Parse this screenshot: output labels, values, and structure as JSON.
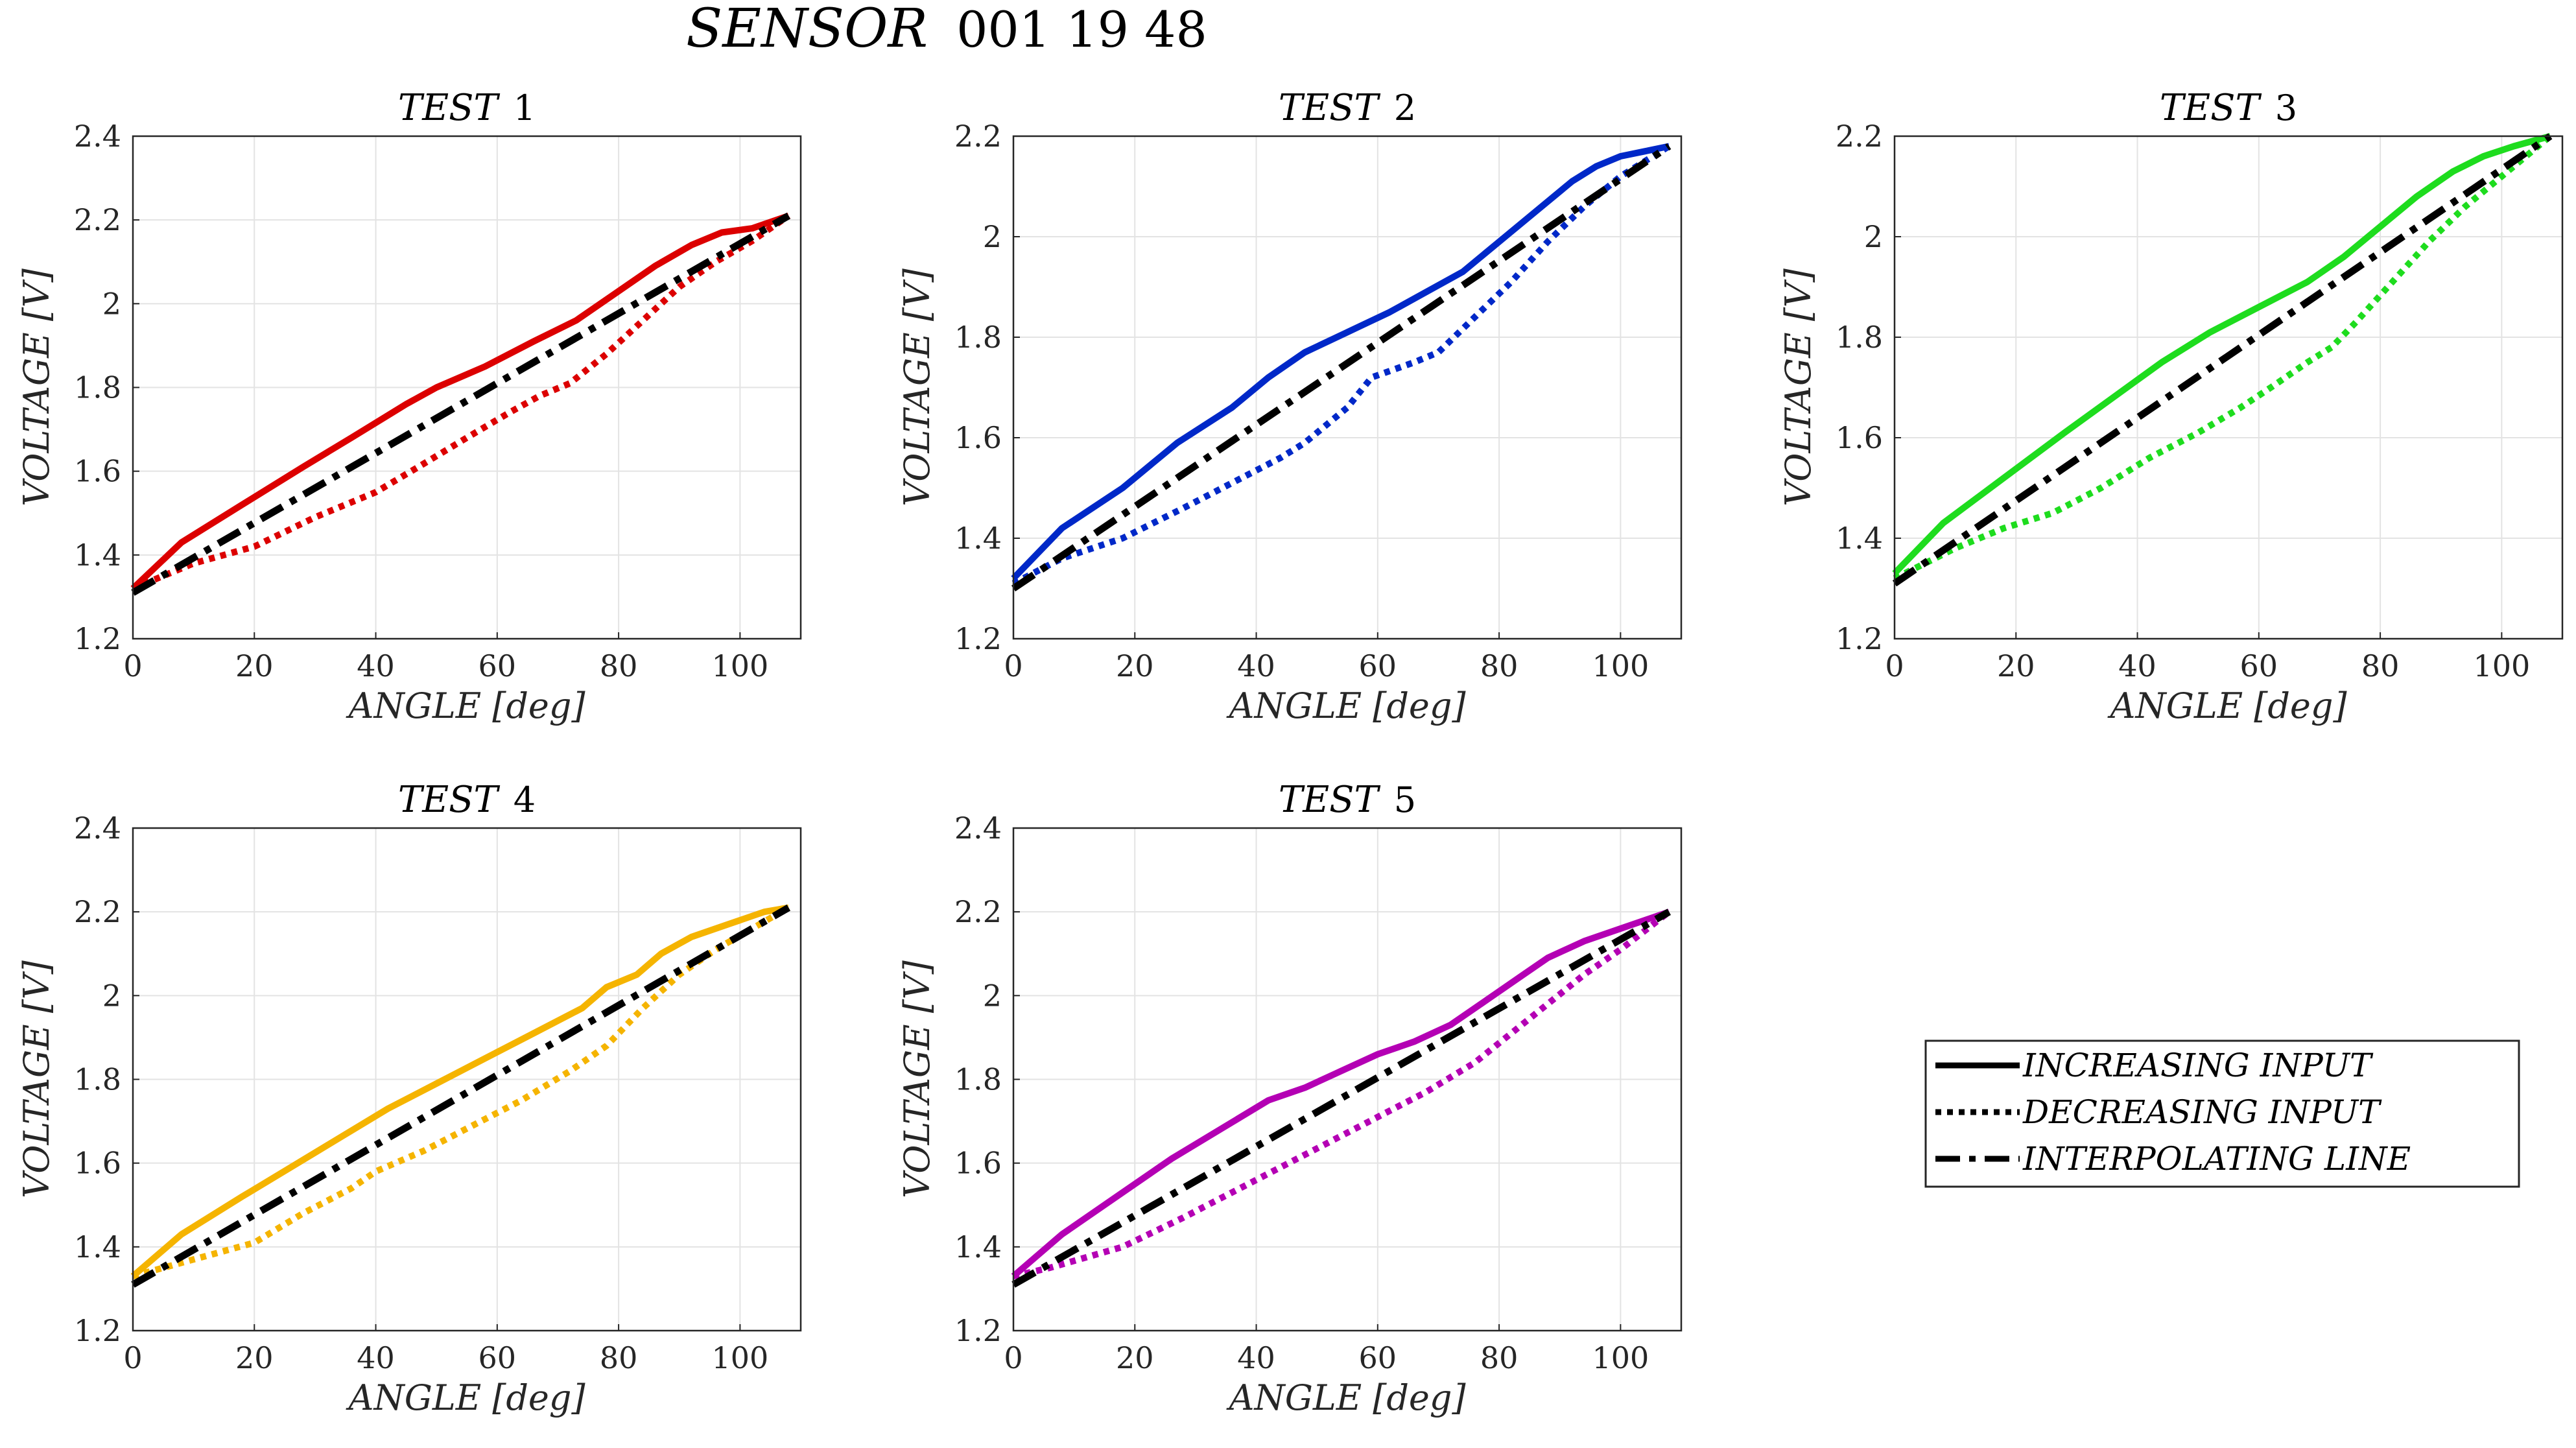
{
  "figure": {
    "title_main": "SENSOR",
    "title_id": "001 19 48"
  },
  "legend": {
    "entries": [
      {
        "label": "INCREASING INPUT",
        "style": "solid"
      },
      {
        "label": "DECREASING INPUT",
        "style": "dotted"
      },
      {
        "label": "INTERPOLATING LINE",
        "style": "dashdot"
      }
    ]
  },
  "chart_data": [
    {
      "type": "line",
      "title": "TEST 1",
      "xlabel": "ANGLE [deg]",
      "ylabel": "VOLTAGE [V]",
      "xlim": [
        0,
        110
      ],
      "ylim": [
        1.2,
        2.4
      ],
      "xticks": [
        "0",
        "20",
        "40",
        "60",
        "80",
        "100"
      ],
      "yticks": [
        "1.2",
        "1.4",
        "1.6",
        "1.8",
        "2",
        "2.2",
        "2.4"
      ],
      "grid": true,
      "color": "#dc0000",
      "series": [
        {
          "name": "INCREASING INPUT",
          "style": "solid",
          "x": [
            0,
            8,
            18,
            28,
            36,
            45,
            50,
            58,
            66,
            73,
            80,
            86,
            92,
            97,
            102,
            108
          ],
          "y": [
            1.32,
            1.43,
            1.52,
            1.61,
            1.68,
            1.76,
            1.8,
            1.85,
            1.91,
            1.96,
            2.03,
            2.09,
            2.14,
            2.17,
            2.18,
            2.21
          ]
        },
        {
          "name": "DECREASING INPUT",
          "style": "dotted",
          "x": [
            0,
            10,
            20,
            30,
            40,
            47,
            55,
            62,
            67,
            72,
            78,
            84,
            90,
            96,
            102,
            108
          ],
          "y": [
            1.32,
            1.38,
            1.42,
            1.49,
            1.55,
            1.61,
            1.68,
            1.74,
            1.78,
            1.81,
            1.88,
            1.96,
            2.04,
            2.1,
            2.15,
            2.21
          ]
        },
        {
          "name": "INTERPOLATING LINE",
          "style": "dashdot",
          "x": [
            0,
            108
          ],
          "y": [
            1.31,
            2.21
          ]
        }
      ]
    },
    {
      "type": "line",
      "title": "TEST 2",
      "xlabel": "ANGLE [deg]",
      "ylabel": "VOLTAGE [V]",
      "xlim": [
        0,
        110
      ],
      "ylim": [
        1.2,
        2.2
      ],
      "xticks": [
        "0",
        "20",
        "40",
        "60",
        "80",
        "100"
      ],
      "yticks": [
        "1.2",
        "1.4",
        "1.6",
        "1.8",
        "2",
        "2.2"
      ],
      "grid": true,
      "color": "#0028c8",
      "series": [
        {
          "name": "INCREASING INPUT",
          "style": "solid",
          "x": [
            0,
            8,
            18,
            27,
            36,
            42,
            48,
            55,
            62,
            68,
            74,
            80,
            86,
            92,
            96,
            100,
            104,
            108
          ],
          "y": [
            1.32,
            1.42,
            1.5,
            1.59,
            1.66,
            1.72,
            1.77,
            1.81,
            1.85,
            1.89,
            1.93,
            1.99,
            2.05,
            2.11,
            2.14,
            2.16,
            2.17,
            2.18
          ]
        },
        {
          "name": "DECREASING INPUT",
          "style": "dotted",
          "x": [
            0,
            8,
            18,
            28,
            36,
            44,
            48,
            55,
            59,
            66,
            70,
            76,
            82,
            88,
            94,
            100,
            108
          ],
          "y": [
            1.31,
            1.36,
            1.4,
            1.46,
            1.51,
            1.56,
            1.59,
            1.66,
            1.72,
            1.75,
            1.77,
            1.84,
            1.91,
            1.99,
            2.06,
            2.12,
            2.18
          ]
        },
        {
          "name": "INTERPOLATING LINE",
          "style": "dashdot",
          "x": [
            0,
            108
          ],
          "y": [
            1.3,
            2.18
          ]
        }
      ]
    },
    {
      "type": "line",
      "title": "TEST 3",
      "xlabel": "ANGLE [deg]",
      "ylabel": "VOLTAGE [V]",
      "xlim": [
        0,
        110
      ],
      "ylim": [
        1.2,
        2.2
      ],
      "xticks": [
        "0",
        "20",
        "40",
        "60",
        "80",
        "100"
      ],
      "yticks": [
        "1.2",
        "1.4",
        "1.6",
        "1.8",
        "2",
        "2.2"
      ],
      "grid": true,
      "color": "#1edc1e",
      "series": [
        {
          "name": "INCREASING INPUT",
          "style": "solid",
          "x": [
            0,
            8,
            18,
            28,
            36,
            44,
            52,
            60,
            68,
            74,
            80,
            86,
            92,
            97,
            102,
            108
          ],
          "y": [
            1.33,
            1.43,
            1.52,
            1.61,
            1.68,
            1.75,
            1.81,
            1.86,
            1.91,
            1.96,
            2.02,
            2.08,
            2.13,
            2.16,
            2.18,
            2.2
          ]
        },
        {
          "name": "DECREASING INPUT",
          "style": "dotted",
          "x": [
            0,
            10,
            18,
            26,
            34,
            42,
            50,
            57,
            62,
            68,
            72,
            76,
            82,
            88,
            94,
            100,
            108
          ],
          "y": [
            1.32,
            1.38,
            1.42,
            1.45,
            1.5,
            1.56,
            1.61,
            1.66,
            1.7,
            1.75,
            1.78,
            1.83,
            1.91,
            1.99,
            2.06,
            2.12,
            2.2
          ]
        },
        {
          "name": "INTERPOLATING LINE",
          "style": "dashdot",
          "x": [
            0,
            108
          ],
          "y": [
            1.31,
            2.2
          ]
        }
      ]
    },
    {
      "type": "line",
      "title": "TEST 4",
      "xlabel": "ANGLE [deg]",
      "ylabel": "VOLTAGE [V]",
      "xlim": [
        0,
        110
      ],
      "ylim": [
        1.2,
        2.4
      ],
      "xticks": [
        "0",
        "20",
        "40",
        "60",
        "80",
        "100"
      ],
      "yticks": [
        "1.2",
        "1.4",
        "1.6",
        "1.8",
        "2",
        "2.2",
        "2.4"
      ],
      "grid": true,
      "color": "#f5b400",
      "series": [
        {
          "name": "INCREASING INPUT",
          "style": "solid",
          "x": [
            0,
            8,
            18,
            26,
            34,
            42,
            50,
            58,
            66,
            74,
            78,
            83,
            87,
            92,
            98,
            104,
            108
          ],
          "y": [
            1.33,
            1.43,
            1.52,
            1.59,
            1.66,
            1.73,
            1.79,
            1.85,
            1.91,
            1.97,
            2.02,
            2.05,
            2.1,
            2.14,
            2.17,
            2.2,
            2.21
          ]
        },
        {
          "name": "DECREASING INPUT",
          "style": "dotted",
          "x": [
            0,
            10,
            20,
            28,
            36,
            40,
            48,
            56,
            64,
            72,
            78,
            84,
            90,
            96,
            102,
            108
          ],
          "y": [
            1.33,
            1.37,
            1.41,
            1.48,
            1.54,
            1.58,
            1.63,
            1.69,
            1.75,
            1.82,
            1.88,
            1.97,
            2.05,
            2.11,
            2.16,
            2.21
          ]
        },
        {
          "name": "INTERPOLATING LINE",
          "style": "dashdot",
          "x": [
            0,
            108
          ],
          "y": [
            1.31,
            2.21
          ]
        }
      ]
    },
    {
      "type": "line",
      "title": "TEST 5",
      "xlabel": "ANGLE [deg]",
      "ylabel": "VOLTAGE [V]",
      "xlim": [
        0,
        110
      ],
      "ylim": [
        1.2,
        2.4
      ],
      "xticks": [
        "0",
        "20",
        "40",
        "60",
        "80",
        "100"
      ],
      "yticks": [
        "1.2",
        "1.4",
        "1.6",
        "1.8",
        "2",
        "2.2",
        "2.4"
      ],
      "grid": true,
      "color": "#b400b4",
      "series": [
        {
          "name": "INCREASING INPUT",
          "style": "solid",
          "x": [
            0,
            8,
            18,
            26,
            34,
            42,
            48,
            54,
            60,
            66,
            72,
            78,
            84,
            88,
            94,
            100,
            108
          ],
          "y": [
            1.33,
            1.43,
            1.53,
            1.61,
            1.68,
            1.75,
            1.78,
            1.82,
            1.86,
            1.89,
            1.93,
            1.99,
            2.05,
            2.09,
            2.13,
            2.16,
            2.2
          ]
        },
        {
          "name": "DECREASING INPUT",
          "style": "dotted",
          "x": [
            0,
            6,
            18,
            28,
            36,
            44,
            52,
            60,
            68,
            76,
            82,
            88,
            94,
            100,
            108
          ],
          "y": [
            1.33,
            1.35,
            1.4,
            1.47,
            1.53,
            1.59,
            1.65,
            1.71,
            1.77,
            1.84,
            1.91,
            1.98,
            2.05,
            2.11,
            2.2
          ]
        },
        {
          "name": "INTERPOLATING LINE",
          "style": "dashdot",
          "x": [
            0,
            108
          ],
          "y": [
            1.31,
            2.2
          ]
        }
      ]
    }
  ]
}
